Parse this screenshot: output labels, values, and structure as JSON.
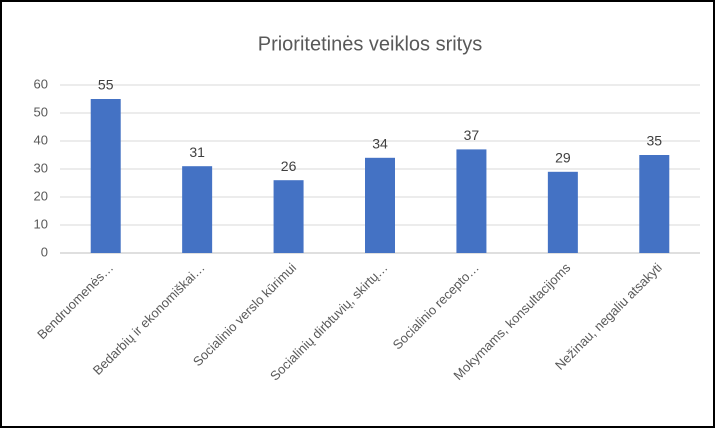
{
  "chart_data": {
    "type": "bar",
    "title": "Prioritetinės veiklos sritys",
    "categories": [
      "Bendruomenės…",
      "Bedarbių ir ekonomiškai…",
      "Socialinio verslo kūrimui",
      "Socialinių dirbtuvių, skirtų…",
      "Socialinio recepto…",
      "Mokymams, konsultacijoms",
      "Nežinau, negaliu atsakyti"
    ],
    "values": [
      55,
      31,
      26,
      34,
      37,
      29,
      35
    ],
    "color": "#4472c4",
    "ylim": [
      0,
      60
    ],
    "yticks": [
      0,
      10,
      20,
      30,
      40,
      50,
      60
    ],
    "grid": true
  }
}
